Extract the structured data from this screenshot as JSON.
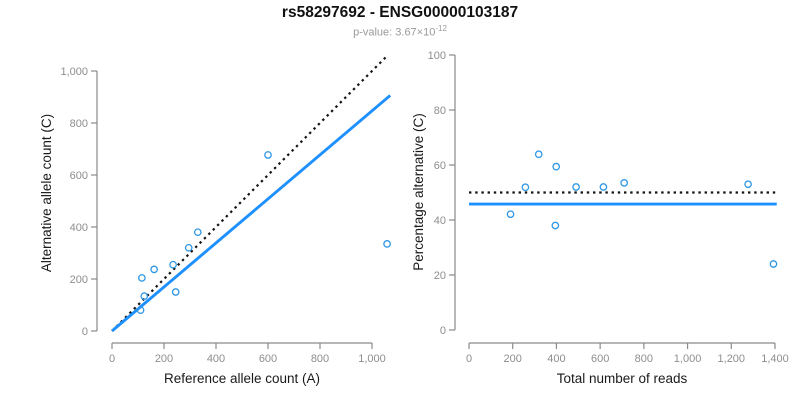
{
  "header": {
    "title": "rs58297692 - ENSG00000103187",
    "subtitle_prefix": "p-value: 3.67×10",
    "subtitle_exponent": "-12"
  },
  "colors": {
    "fit_line_blue": "#1E90FF",
    "point_blue": "#2E97E5",
    "dotted_black": "#141414",
    "axis_gray": "#8a8a8a",
    "tick_label_gray": "#8e8e8e"
  },
  "chart_data": [
    {
      "type": "scatter",
      "panel": "left",
      "xlabel": "Reference allele count (A)",
      "ylabel": "Alternative allele count (C)",
      "xlim": [
        0,
        1075
      ],
      "ylim": [
        0,
        1075
      ],
      "grid": false,
      "xticks": {
        "values": [
          0,
          200,
          400,
          600,
          800,
          1000
        ],
        "labels": [
          "0",
          "200",
          "400",
          "600",
          "800",
          "1,000"
        ]
      },
      "yticks": {
        "values": [
          0,
          200,
          400,
          600,
          800,
          1000
        ],
        "labels": [
          "0",
          "200",
          "400",
          "600",
          "800",
          "1,000"
        ]
      },
      "points": [
        [
          600,
          677
        ],
        [
          330,
          380
        ],
        [
          295,
          320
        ],
        [
          235,
          255
        ],
        [
          162,
          237
        ],
        [
          115,
          204
        ],
        [
          245,
          150
        ],
        [
          124,
          134
        ],
        [
          110,
          80
        ],
        [
          1058,
          335
        ]
      ],
      "lines": [
        {
          "name": "identity-line",
          "style": "dotted",
          "color": "#141414",
          "x1": 0,
          "y1": 0,
          "x2": 1052,
          "y2": 1052
        },
        {
          "name": "fit-line",
          "style": "solid",
          "color": "#1E90FF",
          "x1": 0,
          "y1": 0,
          "x2": 1070,
          "y2": 906
        }
      ]
    },
    {
      "type": "scatter",
      "panel": "right",
      "xlabel": "Total number of reads",
      "ylabel": "Percentage alternative (C)",
      "xlim": [
        0,
        1410
      ],
      "ylim": [
        0,
        100
      ],
      "grid": false,
      "xticks": {
        "values": [
          0,
          200,
          400,
          600,
          800,
          1000,
          1200,
          1400
        ],
        "labels": [
          "0",
          "200",
          "400",
          "600",
          "800",
          "1,000",
          "1,200",
          "1,400"
        ]
      },
      "yticks": {
        "values": [
          0,
          20,
          40,
          60,
          80,
          100
        ],
        "labels": [
          "0",
          "20",
          "40",
          "60",
          "80",
          "100"
        ]
      },
      "points": [
        [
          1277,
          53.0
        ],
        [
          710,
          53.5
        ],
        [
          615,
          52.0
        ],
        [
          490,
          52.0
        ],
        [
          399,
          59.4
        ],
        [
          319,
          63.9
        ],
        [
          395,
          38.0
        ],
        [
          258,
          51.9
        ],
        [
          190,
          42.1
        ],
        [
          1393,
          24.0
        ]
      ],
      "lines": [
        {
          "name": "expected-50pct-line",
          "style": "dotted",
          "color": "#141414",
          "x1": 0,
          "y1": 50,
          "x2": 1408,
          "y2": 50
        },
        {
          "name": "observed-pct-line",
          "style": "solid",
          "color": "#1E90FF",
          "x1": 0,
          "y1": 45.8,
          "x2": 1408,
          "y2": 45.8
        }
      ]
    }
  ]
}
